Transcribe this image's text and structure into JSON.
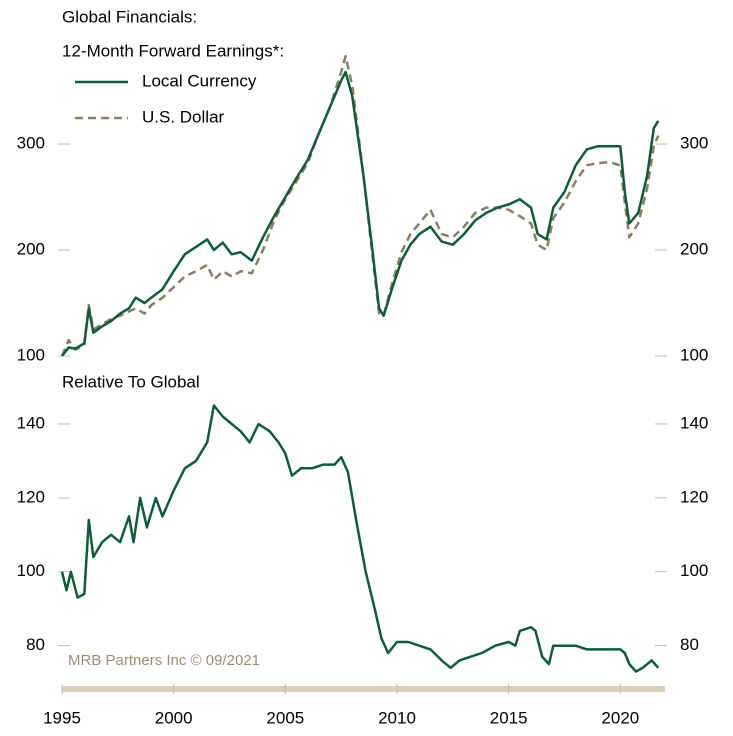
{
  "source": "MRB Partners Inc © 09/2021",
  "chart_data": [
    {
      "type": "line",
      "title": "Global Financials:",
      "subtitle": "12-Month Forward Earnings*:",
      "xlim": [
        1995,
        2022
      ],
      "ylim": [
        100,
        385
      ],
      "yticks": [
        100,
        200,
        300
      ],
      "x": [
        1995.0,
        1995.3,
        1995.6,
        1996.0,
        1996.2,
        1996.4,
        1996.8,
        1997.2,
        1997.6,
        1998.0,
        1998.3,
        1998.7,
        1999.0,
        1999.5,
        2000.0,
        2000.5,
        2001.0,
        2001.5,
        2001.8,
        2002.2,
        2002.6,
        2003.0,
        2003.5,
        2004.0,
        2004.5,
        2005.0,
        2005.5,
        2006.0,
        2006.5,
        2007.0,
        2007.5,
        2007.7,
        2008.0,
        2008.5,
        2008.9,
        2009.2,
        2009.4,
        2009.8,
        2010.2,
        2010.6,
        2011.0,
        2011.5,
        2012.0,
        2012.5,
        2013.0,
        2013.5,
        2014.0,
        2014.5,
        2015.0,
        2015.5,
        2016.0,
        2016.3,
        2016.7,
        2017.0,
        2017.5,
        2018.0,
        2018.5,
        2019.0,
        2019.5,
        2020.0,
        2020.2,
        2020.4,
        2020.8,
        2021.2,
        2021.5,
        2021.7
      ],
      "series": [
        {
          "name": "Local Currency",
          "color": "#0d5c3a",
          "dash": false,
          "values": [
            100,
            108,
            107,
            112,
            145,
            122,
            128,
            133,
            140,
            145,
            155,
            150,
            155,
            163,
            180,
            196,
            203,
            210,
            200,
            207,
            196,
            198,
            190,
            212,
            232,
            250,
            268,
            285,
            310,
            335,
            360,
            368,
            345,
            270,
            200,
            145,
            138,
            165,
            190,
            205,
            215,
            222,
            208,
            205,
            215,
            228,
            235,
            240,
            243,
            248,
            240,
            215,
            210,
            240,
            255,
            280,
            295,
            298,
            298,
            298,
            255,
            225,
            235,
            270,
            315,
            322
          ]
        },
        {
          "name": "U.S. Dollar",
          "color": "#8b7d64",
          "dash": true,
          "values": [
            100,
            115,
            106,
            110,
            148,
            125,
            130,
            135,
            138,
            142,
            145,
            140,
            148,
            155,
            165,
            175,
            180,
            186,
            172,
            180,
            175,
            180,
            178,
            200,
            228,
            248,
            265,
            282,
            310,
            335,
            368,
            383,
            355,
            270,
            195,
            140,
            138,
            170,
            198,
            215,
            225,
            238,
            215,
            212,
            222,
            235,
            240,
            240,
            238,
            232,
            225,
            205,
            200,
            230,
            245,
            265,
            280,
            282,
            283,
            280,
            245,
            212,
            225,
            258,
            298,
            308
          ]
        }
      ]
    },
    {
      "type": "line",
      "title": "Relative To Global",
      "xlim": [
        1995,
        2022
      ],
      "ylim": [
        68,
        150
      ],
      "yticks": [
        80,
        100,
        120,
        140
      ],
      "xticks": [
        1995,
        2000,
        2005,
        2010,
        2015,
        2020
      ],
      "x": [
        1995.0,
        1995.2,
        1995.4,
        1995.7,
        1996.0,
        1996.2,
        1996.4,
        1996.8,
        1997.2,
        1997.6,
        1998.0,
        1998.2,
        1998.5,
        1998.8,
        1999.2,
        1999.5,
        2000.0,
        2000.5,
        2001.0,
        2001.5,
        2001.8,
        2002.2,
        2002.6,
        2003.0,
        2003.4,
        2003.8,
        2004.3,
        2004.7,
        2005.0,
        2005.3,
        2005.7,
        2006.2,
        2006.7,
        2007.2,
        2007.5,
        2007.8,
        2008.2,
        2008.6,
        2009.0,
        2009.3,
        2009.6,
        2010.0,
        2010.5,
        2011.0,
        2011.5,
        2012.0,
        2012.4,
        2012.8,
        2013.3,
        2013.8,
        2014.4,
        2015.0,
        2015.3,
        2015.5,
        2016.0,
        2016.2,
        2016.5,
        2016.8,
        2017.0,
        2017.5,
        2018.0,
        2018.5,
        2019.0,
        2019.5,
        2020.0,
        2020.2,
        2020.4,
        2020.7,
        2021.0,
        2021.4,
        2021.7
      ],
      "series": [
        {
          "name": "Relative To Global",
          "color": "#0d5c3a",
          "values": [
            100,
            95,
            100,
            93,
            94,
            114,
            104,
            108,
            110,
            108,
            115,
            108,
            120,
            112,
            120,
            115,
            122,
            128,
            130,
            135,
            145,
            142,
            140,
            138,
            135,
            140,
            138,
            135,
            132,
            126,
            128,
            128,
            129,
            129,
            131,
            127,
            113,
            100,
            90,
            82,
            78,
            81,
            81,
            80,
            79,
            76,
            74,
            76,
            77,
            78,
            80,
            81,
            80,
            84,
            85,
            84,
            77,
            75,
            80,
            80,
            80,
            79,
            79,
            79,
            79,
            78,
            75,
            73,
            74,
            76,
            74
          ]
        }
      ]
    }
  ]
}
